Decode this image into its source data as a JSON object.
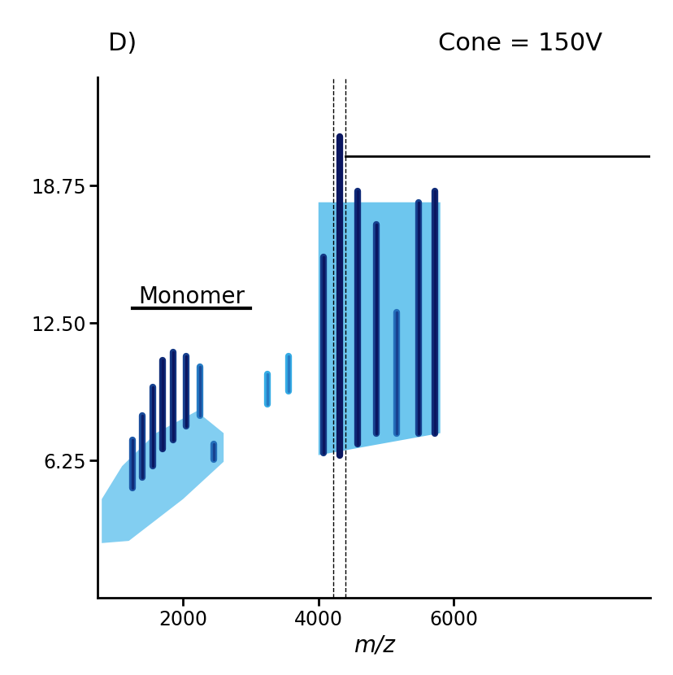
{
  "chart_data": {
    "type": "mobility_map",
    "panel_label": "D)",
    "annotation": "Cone = 150V",
    "group_label": {
      "text": "Monomer",
      "mz_start": 1250,
      "mz_end": 3000,
      "drift": 13.2
    },
    "x_label": "m/z",
    "xlim": [
      740,
      8900
    ],
    "ylim": [
      0,
      23.7
    ],
    "xticks": [
      2000,
      4000,
      6000
    ],
    "yticks": [
      6.25,
      {
        "value": 12.5,
        "label": "12.50"
      },
      18.75
    ],
    "highlight_mz": [
      4220,
      4400
    ],
    "line": {
      "drift": 20.1,
      "mz_start": 4400
    },
    "regions": [
      {
        "mz": [
          800,
          1200,
          2000,
          2600,
          2600,
          2200,
          1600,
          1100,
          800
        ],
        "drift": [
          2.5,
          2.6,
          4.5,
          6.2,
          7.5,
          8.5,
          7.5,
          6.0,
          4.5
        ],
        "intensity": 0.15
      },
      {
        "mz": [
          4000,
          5800,
          5800,
          4000
        ],
        "drift": [
          6.5,
          7.5,
          18.0,
          18.0
        ],
        "intensity": 0.2
      }
    ],
    "streaks": [
      {
        "mz": 1250,
        "drift_min": 5.0,
        "drift_max": 7.2,
        "intensity": 0.7
      },
      {
        "mz": 1400,
        "drift_min": 5.5,
        "drift_max": 8.3,
        "intensity": 0.75
      },
      {
        "mz": 1550,
        "drift_min": 6.0,
        "drift_max": 9.6,
        "intensity": 0.8
      },
      {
        "mz": 1700,
        "drift_min": 6.8,
        "drift_max": 10.8,
        "intensity": 0.9
      },
      {
        "mz": 1850,
        "drift_min": 7.2,
        "drift_max": 11.2,
        "intensity": 0.85
      },
      {
        "mz": 2050,
        "drift_min": 7.8,
        "drift_max": 11.0,
        "intensity": 0.8
      },
      {
        "mz": 2250,
        "drift_min": 8.3,
        "drift_max": 10.5,
        "intensity": 0.55
      },
      {
        "mz": 2450,
        "drift_min": 6.3,
        "drift_max": 7.0,
        "intensity": 0.6
      },
      {
        "mz": 3250,
        "drift_min": 8.8,
        "drift_max": 10.2,
        "intensity": 0.35
      },
      {
        "mz": 3560,
        "drift_min": 9.4,
        "drift_max": 11.0,
        "intensity": 0.35
      },
      {
        "mz": 4080,
        "drift_min": 6.6,
        "drift_max": 15.5,
        "intensity": 0.85
      },
      {
        "mz": 4320,
        "drift_min": 6.5,
        "drift_max": 21.0,
        "intensity": 1.0
      },
      {
        "mz": 4580,
        "drift_min": 7.0,
        "drift_max": 18.5,
        "intensity": 0.9
      },
      {
        "mz": 4850,
        "drift_min": 7.5,
        "drift_max": 17.0,
        "intensity": 0.8
      },
      {
        "mz": 5150,
        "drift_min": 7.5,
        "drift_max": 13.0,
        "intensity": 0.6
      },
      {
        "mz": 5480,
        "drift_min": 7.5,
        "drift_max": 18.0,
        "intensity": 0.8
      },
      {
        "mz": 5720,
        "drift_min": 7.5,
        "drift_max": 18.5,
        "intensity": 0.9
      }
    ]
  }
}
